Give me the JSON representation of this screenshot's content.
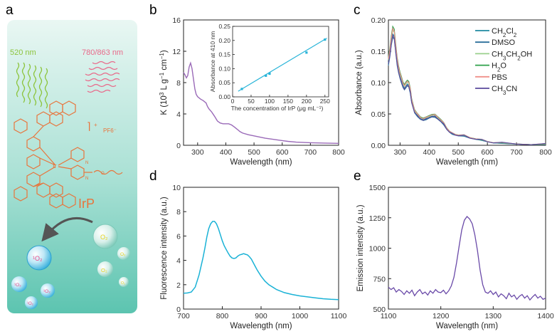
{
  "panel_labels": [
    "a",
    "b",
    "c",
    "d",
    "e"
  ],
  "schematic": {
    "green_light": "520 nm",
    "red_light": "780/863 nm",
    "counter_ion": "PF6⁻",
    "charge": "+",
    "compound": "IrP",
    "metal": "Ir",
    "oxygen_label": "O₂",
    "singlet_label": "¹O₂",
    "n_label": "N",
    "o_label": "O",
    "colors": {
      "panel_top": "#e4f5f0",
      "panel_bottom": "#5cc4b0",
      "green": "#8cc43c",
      "red": "#e86a8a",
      "ir": "#e8743b",
      "bubble": "#38b0dc"
    }
  },
  "chart_data": [
    {
      "id": "b",
      "type": "line",
      "xlabel": "Wavelength (nm)",
      "ylabel_prefix": "K (10",
      "ylabel_exp": "3",
      "ylabel_mid": " L g",
      "ylabel_exp2": "−1",
      "ylabel_mid2": " cm",
      "ylabel_exp3": "−1",
      "ylabel_suffix": ")",
      "xlim": [
        250,
        800
      ],
      "ylim": [
        0,
        16
      ],
      "xticks": [
        300,
        400,
        500,
        600,
        700,
        800
      ],
      "yticks": [
        0,
        4,
        8,
        12,
        16
      ],
      "color": "#9a6ab8",
      "x": [
        250,
        255,
        260,
        265,
        270,
        275,
        280,
        285,
        290,
        295,
        300,
        310,
        320,
        330,
        335,
        340,
        350,
        360,
        370,
        380,
        390,
        400,
        410,
        420,
        430,
        440,
        450,
        460,
        480,
        500,
        520,
        540,
        560,
        580,
        600,
        620,
        650,
        700,
        750,
        800
      ],
      "y": [
        9.3,
        9.0,
        8.6,
        8.9,
        10.0,
        10.5,
        9.8,
        8.5,
        7.2,
        6.5,
        6.2,
        5.9,
        5.7,
        5.4,
        4.95,
        4.65,
        4.25,
        3.7,
        3.1,
        2.85,
        2.75,
        2.75,
        2.75,
        2.6,
        2.35,
        2.05,
        1.75,
        1.55,
        1.35,
        1.2,
        1.05,
        0.9,
        0.8,
        0.7,
        0.6,
        0.5,
        0.4,
        0.33,
        0.28,
        0.25
      ],
      "inset": {
        "xlabel": "The concentration of IrP (μg mL⁻¹)",
        "ylabel": "Absorbance at 410 nm",
        "xlim": [
          0,
          260
        ],
        "ylim": [
          0,
          0.25
        ],
        "xticks": [
          0,
          50,
          100,
          150,
          200,
          250
        ],
        "yticks": [
          0.0,
          0.05,
          0.1,
          0.15,
          0.2,
          0.25
        ],
        "ytick_labels": [
          "0.00",
          "0.05",
          "0.10",
          "0.15",
          "0.20",
          "0.25"
        ],
        "points_x": [
          25,
          90,
          100,
          200,
          250
        ],
        "points_y": [
          0.028,
          0.075,
          0.082,
          0.157,
          0.203
        ],
        "fit": [
          [
            15,
            0.02
          ],
          [
            255,
            0.208
          ]
        ],
        "color": "#28b4d8"
      }
    },
    {
      "id": "c",
      "type": "line",
      "xlabel": "Wavelength (nm)",
      "ylabel": "Absorbance (a.u.)",
      "xlim": [
        260,
        800
      ],
      "ylim": [
        0,
        0.2
      ],
      "xticks": [
        300,
        400,
        500,
        600,
        700,
        800
      ],
      "yticks": [
        0.0,
        0.05,
        0.1,
        0.15,
        0.2
      ],
      "ytick_labels": [
        "0.00",
        "0.05",
        "0.10",
        "0.15",
        "0.20"
      ],
      "legend_position": "top-right",
      "base_x": [
        260,
        265,
        270,
        275,
        280,
        285,
        290,
        295,
        300,
        305,
        310,
        315,
        320,
        325,
        330,
        335,
        340,
        350,
        360,
        370,
        380,
        390,
        400,
        410,
        420,
        430,
        440,
        450,
        460,
        470,
        480,
        490,
        500,
        520,
        540,
        560,
        580,
        600,
        620,
        650,
        700,
        750,
        800
      ],
      "base_y": [
        0.135,
        0.15,
        0.17,
        0.183,
        0.18,
        0.158,
        0.135,
        0.123,
        0.113,
        0.105,
        0.098,
        0.094,
        0.097,
        0.101,
        0.099,
        0.088,
        0.072,
        0.055,
        0.048,
        0.044,
        0.042,
        0.043,
        0.046,
        0.048,
        0.047,
        0.044,
        0.04,
        0.034,
        0.027,
        0.022,
        0.018,
        0.017,
        0.016,
        0.015,
        0.012,
        0.01,
        0.008,
        0.006,
        0.004,
        0.003,
        0.002,
        0.001,
        0.001
      ],
      "series": [
        {
          "name": "CH₂Cl₂",
          "label_main": "CH",
          "label_sub": "2",
          "label_rest": "Cl",
          "label_sub2": "2",
          "label_tail": "",
          "color": "#1f8aa0",
          "scale": 0.97
        },
        {
          "name": "DMSO",
          "label_main": "DMSO",
          "label_sub": "",
          "label_rest": "",
          "label_sub2": "",
          "label_tail": "",
          "color": "#2a6e9a",
          "scale": 0.94
        },
        {
          "name": "CH₃CH₂OH",
          "label_main": "CH",
          "label_sub": "3",
          "label_rest": "CH",
          "label_sub2": "2",
          "label_tail": "OH",
          "color": "#9ad08c",
          "scale": 1.0
        },
        {
          "name": "H₂O",
          "label_main": "H",
          "label_sub": "2",
          "label_rest": "O",
          "label_sub2": "",
          "label_tail": "",
          "color": "#2ea04a",
          "scale": 1.03
        },
        {
          "name": "PBS",
          "label_main": "PBS",
          "label_sub": "",
          "label_rest": "",
          "label_sub2": "",
          "label_tail": "",
          "color": "#f0908a",
          "scale": 1.01
        },
        {
          "name": "CH₃CN",
          "label_main": "CH",
          "label_sub": "3",
          "label_rest": "CN",
          "label_sub2": "",
          "label_tail": "",
          "color": "#5a4a9c",
          "scale": 0.95
        }
      ]
    },
    {
      "id": "d",
      "type": "line",
      "xlabel": "Wavelength (nm)",
      "ylabel": "Fluorescence intensity (a.u.)",
      "xlim": [
        700,
        1100
      ],
      "ylim": [
        0,
        10
      ],
      "xticks": [
        700,
        800,
        900,
        1000,
        1100
      ],
      "yticks": [
        0,
        2,
        4,
        6,
        8,
        10
      ],
      "color": "#1ab2d6",
      "x": [
        700,
        710,
        720,
        730,
        740,
        750,
        755,
        760,
        765,
        770,
        775,
        780,
        785,
        790,
        795,
        800,
        805,
        810,
        815,
        820,
        825,
        830,
        835,
        840,
        845,
        850,
        855,
        860,
        865,
        870,
        875,
        880,
        885,
        890,
        900,
        910,
        920,
        930,
        940,
        960,
        980,
        1000,
        1020,
        1040,
        1060,
        1080,
        1100
      ],
      "y": [
        1.3,
        1.32,
        1.4,
        1.8,
        2.8,
        4.2,
        5.0,
        5.9,
        6.6,
        7.0,
        7.2,
        7.2,
        7.0,
        6.6,
        6.1,
        5.6,
        5.2,
        4.9,
        4.6,
        4.35,
        4.2,
        4.15,
        4.2,
        4.35,
        4.45,
        4.5,
        4.55,
        4.5,
        4.45,
        4.3,
        4.1,
        3.8,
        3.5,
        3.2,
        2.7,
        2.3,
        2.0,
        1.8,
        1.6,
        1.35,
        1.2,
        1.08,
        1.0,
        0.92,
        0.85,
        0.8,
        0.78
      ]
    },
    {
      "id": "e",
      "type": "line",
      "xlabel": "Wavelength (nm)",
      "ylabel": "Emission intensity (a.u.)",
      "xlim": [
        1100,
        1400
      ],
      "ylim": [
        500,
        1500
      ],
      "xticks": [
        1100,
        1200,
        1300,
        1400
      ],
      "yticks": [
        500,
        750,
        1000,
        1250,
        1500
      ],
      "color": "#6a4aa8",
      "x": [
        1100,
        1105,
        1110,
        1115,
        1120,
        1125,
        1130,
        1135,
        1140,
        1145,
        1150,
        1155,
        1160,
        1165,
        1170,
        1175,
        1180,
        1185,
        1190,
        1195,
        1200,
        1205,
        1210,
        1215,
        1220,
        1225,
        1230,
        1235,
        1240,
        1245,
        1250,
        1255,
        1260,
        1265,
        1270,
        1275,
        1280,
        1285,
        1290,
        1295,
        1300,
        1305,
        1310,
        1315,
        1320,
        1325,
        1330,
        1335,
        1340,
        1345,
        1350,
        1355,
        1360,
        1365,
        1370,
        1375,
        1380,
        1385,
        1390,
        1395,
        1400
      ],
      "y": [
        680,
        660,
        675,
        640,
        660,
        645,
        620,
        650,
        630,
        655,
        610,
        640,
        660,
        625,
        640,
        615,
        650,
        630,
        660,
        640,
        635,
        655,
        625,
        650,
        690,
        760,
        880,
        1020,
        1150,
        1230,
        1260,
        1240,
        1200,
        1110,
        980,
        820,
        700,
        640,
        630,
        650,
        620,
        640,
        600,
        625,
        610,
        585,
        630,
        600,
        615,
        580,
        605,
        620,
        590,
        610,
        575,
        600,
        620,
        590,
        605,
        580,
        590
      ]
    }
  ]
}
